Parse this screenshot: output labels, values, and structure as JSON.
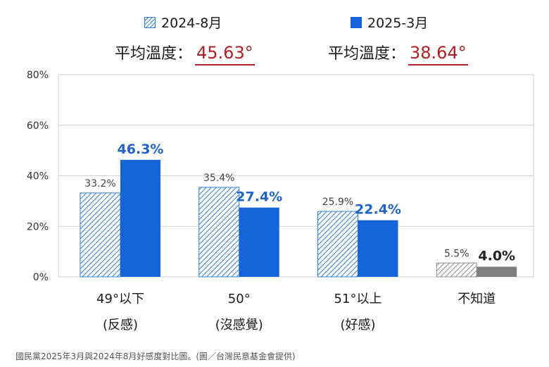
{
  "legend": [
    {
      "label": "2024-8月",
      "style": "hatched",
      "color": "#2e7fd6"
    },
    {
      "label": "2025-3月",
      "style": "solid",
      "color": "#1565d8"
    }
  ],
  "averages": [
    {
      "label": "平均溫度：",
      "value": "45.63°"
    },
    {
      "label": "平均溫度：",
      "value": "38.64°"
    }
  ],
  "caption": "國民黨2025年3月與2024年8月好感度對比圖。(圖／台灣民意基金會提供)",
  "colors": {
    "blue_solid": "#1565d8",
    "blue_hatch": "#2e7fd6",
    "gray_solid": "#7f7f7f",
    "gray_hatch": "#8c8c8c",
    "average_red": "#b01f24",
    "label_blue": "#1f63c6"
  },
  "chart_data": {
    "type": "bar",
    "categories": [
      {
        "line1": "49°以下",
        "line2": "(反感)"
      },
      {
        "line1": "50°",
        "line2": "(沒感覺)"
      },
      {
        "line1": "51°以上",
        "line2": "(好感)"
      },
      {
        "line1": "不知道",
        "line2": ""
      }
    ],
    "series": [
      {
        "name": "2024-8月",
        "values": [
          33.2,
          35.4,
          25.9,
          5.5
        ],
        "labels": [
          "33.2%",
          "35.4%",
          "25.9%",
          "5.5%"
        ]
      },
      {
        "name": "2025-3月",
        "values": [
          46.3,
          27.4,
          22.4,
          4.0
        ],
        "labels": [
          "46.3%",
          "27.4%",
          "22.4%",
          "4.0%"
        ]
      }
    ],
    "y_ticks": [
      "0%",
      "20%",
      "40%",
      "60%",
      "80%"
    ],
    "ylim": [
      0,
      80
    ],
    "grid": true,
    "legend_position": "top"
  }
}
